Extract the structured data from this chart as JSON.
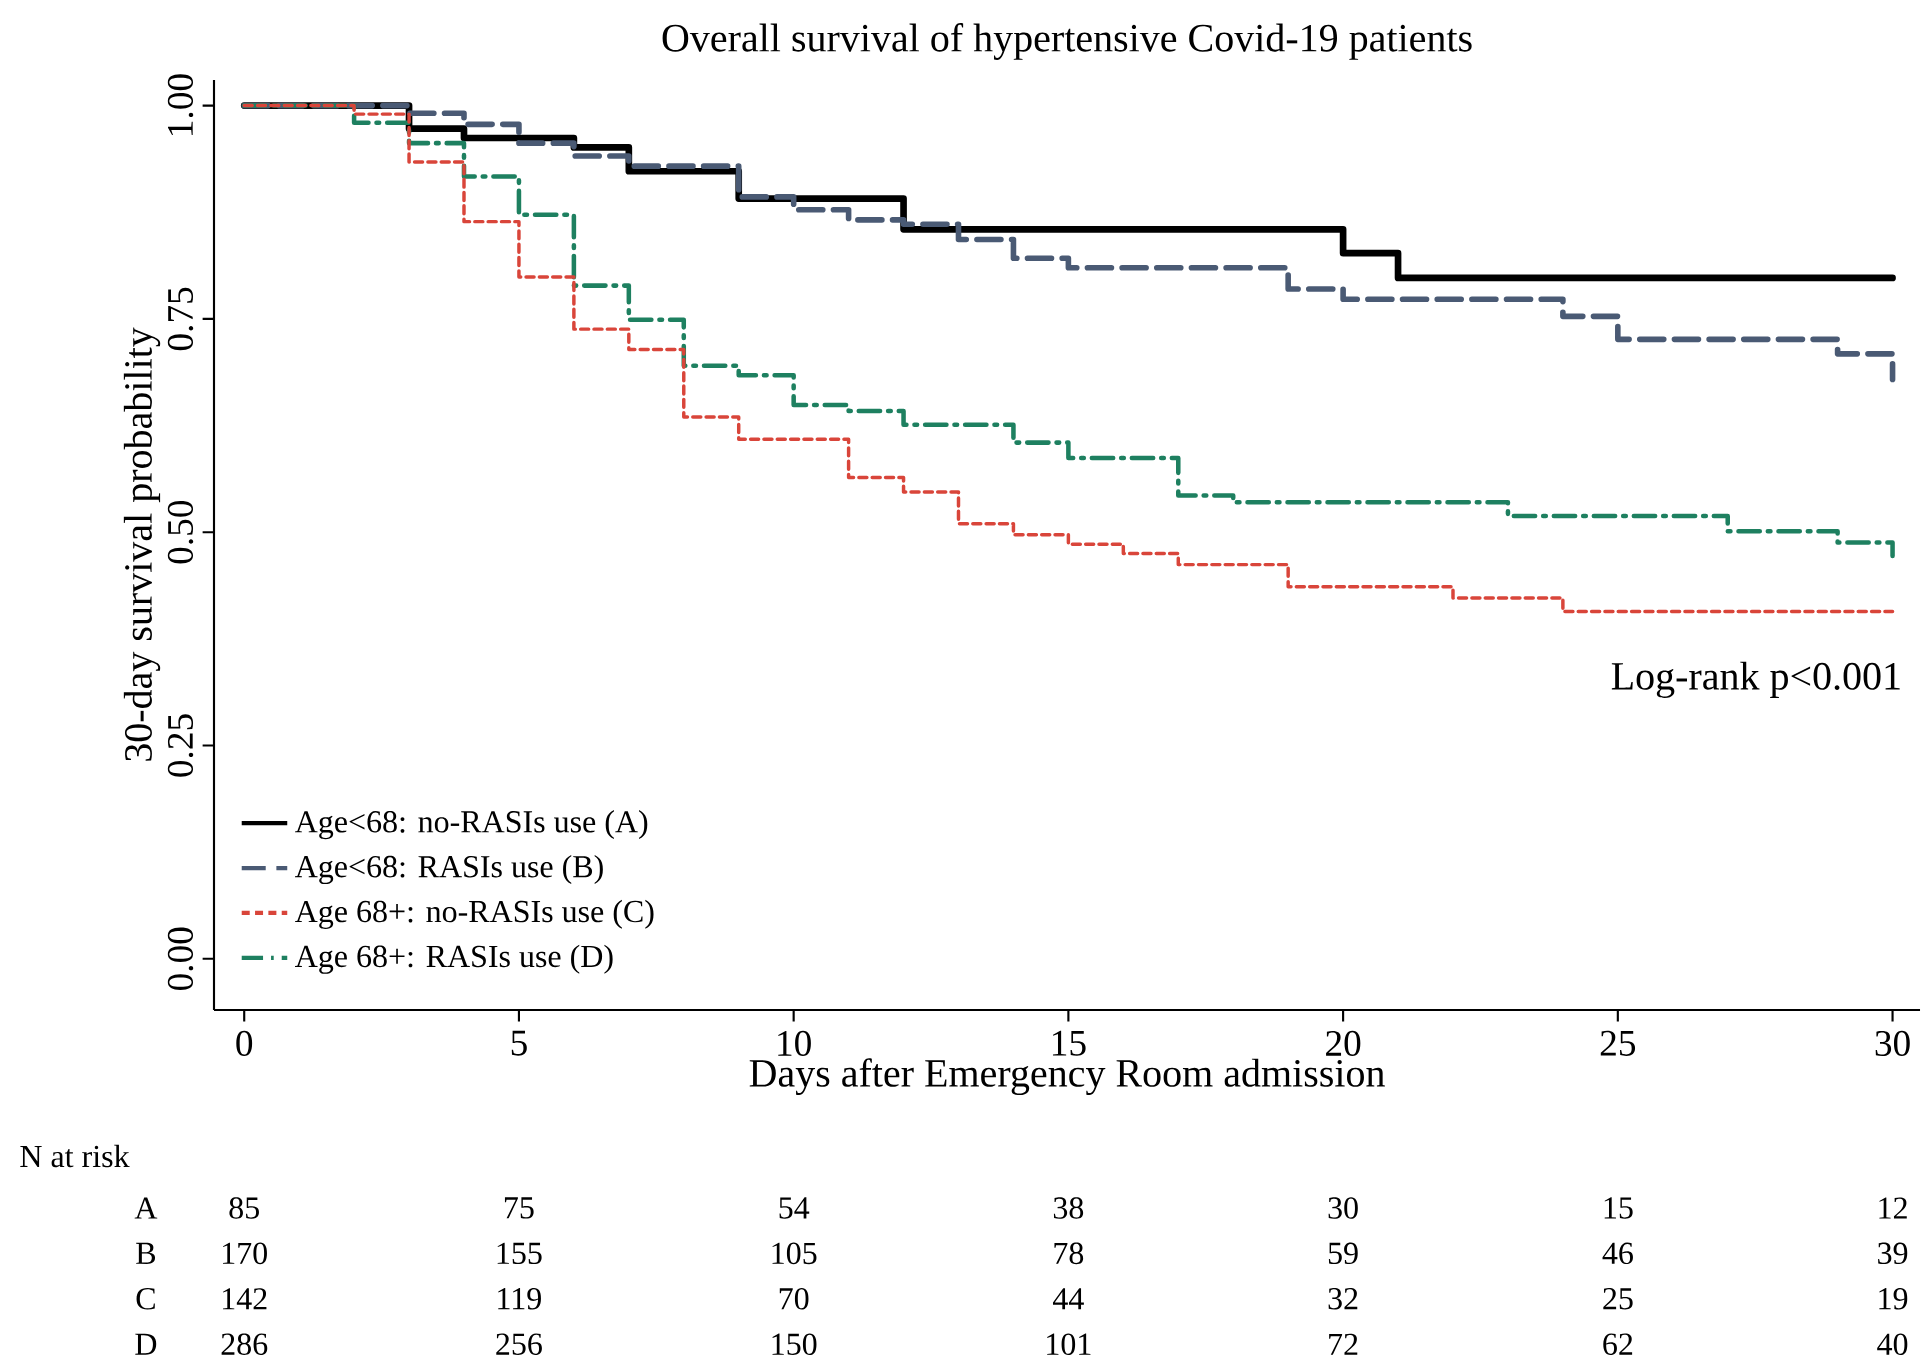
{
  "chart_data": {
    "type": "step",
    "title": "Overall survival of hypertensive Covid-19 patients",
    "xlabel": "Days after Emergency Room admission",
    "ylabel": "30-day survival probability",
    "xlim": [
      -0.55,
      30.5
    ],
    "ylim": [
      -0.06,
      1.03
    ],
    "xticks": [
      0,
      5,
      10,
      15,
      20,
      25,
      30
    ],
    "yticks": [
      {
        "value": 0,
        "label": "0.00"
      },
      {
        "value": 0.25,
        "label": "0.25"
      },
      {
        "value": 0.5,
        "label": "0.50"
      },
      {
        "value": 0.75,
        "label": "0.75"
      },
      {
        "value": 1,
        "label": "1.00"
      }
    ],
    "legend": "bottom left",
    "series": [
      {
        "name": "Age<68: no-RASIs use (A)",
        "color": "#000000",
        "line_style": "solid",
        "x": [
          0,
          3,
          4,
          6,
          7,
          9,
          12,
          20,
          21,
          30
        ],
        "values": [
          1.0,
          0.973,
          0.962,
          0.951,
          0.923,
          0.891,
          0.855,
          0.827,
          0.798,
          0.798
        ]
      },
      {
        "name": "Age<68: RASIs use (B)",
        "color": "#4a5a74",
        "line_style": "dashed",
        "x": [
          0,
          3,
          4,
          5,
          6,
          7,
          9,
          10,
          11,
          12,
          13,
          14,
          15,
          19,
          20,
          24,
          25,
          29,
          30
        ],
        "values": [
          1.0,
          0.991,
          0.978,
          0.956,
          0.941,
          0.929,
          0.893,
          0.878,
          0.866,
          0.861,
          0.843,
          0.821,
          0.81,
          0.785,
          0.773,
          0.753,
          0.726,
          0.709,
          0.679
        ]
      },
      {
        "name": "Age 68+: no-RASIs use (C)",
        "color": "#d9453a",
        "line_style": "dotted",
        "x": [
          0,
          2,
          3,
          4,
          5,
          6,
          7,
          8,
          9,
          11,
          12,
          13,
          14,
          15,
          16,
          17,
          19,
          22,
          24,
          30
        ],
        "values": [
          1.0,
          0.99,
          0.934,
          0.864,
          0.799,
          0.738,
          0.714,
          0.635,
          0.609,
          0.564,
          0.547,
          0.51,
          0.497,
          0.486,
          0.475,
          0.462,
          0.436,
          0.423,
          0.407,
          0.407
        ]
      },
      {
        "name": "Age 68+: RASIs use (D)",
        "color": "#1e8060",
        "line_style": "dashdot",
        "x": [
          0,
          2,
          3,
          4,
          5,
          6,
          7,
          8,
          9,
          10,
          11,
          12,
          14,
          15,
          17,
          18,
          23,
          27,
          29,
          30
        ],
        "values": [
          1.0,
          0.98,
          0.956,
          0.917,
          0.872,
          0.789,
          0.749,
          0.695,
          0.684,
          0.649,
          0.642,
          0.626,
          0.605,
          0.587,
          0.543,
          0.535,
          0.519,
          0.501,
          0.488,
          0.472
        ]
      }
    ],
    "annotations": [
      "Log-rank p<0.001",
      "N at risk",
      "A",
      "85",
      "75",
      "54",
      "38",
      "30",
      "15",
      "12",
      "B",
      "170",
      "155",
      "105",
      "78",
      "59",
      "46",
      "39",
      "C",
      "142",
      "119",
      "70",
      "44",
      "32",
      "25",
      "19",
      "D",
      "286",
      "256",
      "150",
      "101",
      "72",
      "62",
      "40"
    ]
  }
}
